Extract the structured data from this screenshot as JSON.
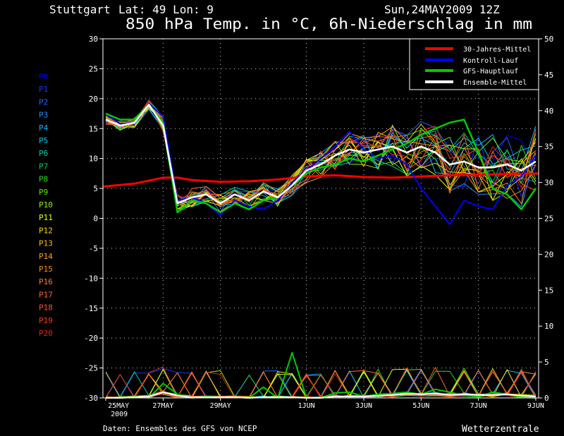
{
  "header": {
    "location": "Stuttgart",
    "coords": "Lat: 49  Lon: 9",
    "run": "Sun,24MAY2009 12Z",
    "title": "850 hPa Temp. in °C, 6h-Niederschlag in mm"
  },
  "footer": {
    "source": "Daten: Ensembles des GFS von NCEP",
    "brand": "Wetterzentrale"
  },
  "colors": {
    "background": "#000000",
    "axis": "#ffffff",
    "grid": "#ffffff",
    "clim": "#ff0000",
    "control": "#0000ff",
    "main": "#00cc00",
    "ensmean": "#ffffff"
  },
  "members": [
    {
      "name": "P0",
      "color": "#0000ff"
    },
    {
      "name": "P1",
      "color": "#1a33ff"
    },
    {
      "name": "P2",
      "color": "#1e66ff"
    },
    {
      "name": "P3",
      "color": "#1e90ff"
    },
    {
      "name": "P4",
      "color": "#19b0ff"
    },
    {
      "name": "P5",
      "color": "#00c8e6"
    },
    {
      "name": "P6",
      "color": "#00d2a0"
    },
    {
      "name": "P7",
      "color": "#00d25a"
    },
    {
      "name": "P8",
      "color": "#28dc1e"
    },
    {
      "name": "P9",
      "color": "#64e600"
    },
    {
      "name": "P10",
      "color": "#a0f000"
    },
    {
      "name": "P11",
      "color": "#e6ff00"
    },
    {
      "name": "P12",
      "color": "#ffdc00"
    },
    {
      "name": "P13",
      "color": "#ffbe00"
    },
    {
      "name": "P14",
      "color": "#ffa01e"
    },
    {
      "name": "P15",
      "color": "#ff8c1e"
    },
    {
      "name": "P16",
      "color": "#ff7828"
    },
    {
      "name": "P17",
      "color": "#ff6432"
    },
    {
      "name": "P18",
      "color": "#ff5028"
    },
    {
      "name": "P19",
      "color": "#f03c1e"
    },
    {
      "name": "P20",
      "color": "#dc2814"
    }
  ],
  "chart_data": {
    "type": "line",
    "title": "850 hPa Temp. in °C, 6h-Niederschlag in mm",
    "x_unit": "days since 25MAY 00Z",
    "xlim": [
      -0.1,
      15.1
    ],
    "ylim_left": [
      -30,
      30
    ],
    "ylim_right": [
      0,
      50
    ],
    "left_ticks": [
      30,
      25,
      20,
      15,
      10,
      5,
      0,
      -5,
      -10,
      -15,
      -20,
      -25,
      -30
    ],
    "right_ticks": [
      50,
      45,
      40,
      35,
      30,
      25,
      20,
      15,
      10,
      5,
      0
    ],
    "x_ticks": [
      {
        "x": 0,
        "label": "25MAY",
        "sub": "2009"
      },
      {
        "x": 2,
        "label": "27MAY",
        "sub": ""
      },
      {
        "x": 4,
        "label": "29MAY",
        "sub": ""
      },
      {
        "x": 7,
        "label": "1JUN",
        "sub": ""
      },
      {
        "x": 9,
        "label": "3JUN",
        "sub": ""
      },
      {
        "x": 11,
        "label": "5JUN",
        "sub": ""
      },
      {
        "x": 13,
        "label": "7JUN",
        "sub": ""
      },
      {
        "x": 15,
        "label": "9JUN",
        "sub": ""
      }
    ],
    "grid": true,
    "legend": {
      "position": "top-right",
      "entries": [
        {
          "label": "30-Jahres-Mittel",
          "color": "#ff0000"
        },
        {
          "label": "Kontroll-Lauf",
          "color": "#0000ff"
        },
        {
          "label": "GFS-Hauptlauf",
          "color": "#00cc00"
        },
        {
          "label": "Ensemble-Mittel",
          "color": "#ffffff"
        }
      ]
    },
    "temperature": {
      "climatology": {
        "x": [
          -0.1,
          1,
          2,
          2.5,
          3,
          4,
          5,
          6,
          7,
          8,
          9,
          10,
          11,
          12,
          13,
          14,
          15.1
        ],
        "y": [
          5.3,
          5.8,
          6.8,
          6.8,
          6.4,
          6.1,
          6.2,
          6.5,
          7.0,
          7.2,
          6.9,
          6.8,
          7.0,
          7.2,
          7.3,
          7.4,
          7.5
        ]
      },
      "control": {
        "x": [
          0,
          0.5,
          1,
          1.5,
          2,
          2.5,
          3,
          3.5,
          4,
          4.5,
          5,
          5.5,
          6,
          6.5,
          7,
          7.5,
          8,
          8.5,
          9,
          9.5,
          10,
          10.5,
          11,
          11.5,
          12,
          12.5,
          13,
          13.5,
          14,
          14.5,
          15
        ],
        "y": [
          17.4,
          15.8,
          16.0,
          19.2,
          17.0,
          3.0,
          3.5,
          2.5,
          0.5,
          3.0,
          2.0,
          1.5,
          3.0,
          6.0,
          8.0,
          10.0,
          12.0,
          14.5,
          11.5,
          10.0,
          10.5,
          9.0,
          5.0,
          2.0,
          -1.0,
          3.0,
          2.0,
          1.5,
          5.5,
          7.0,
          10.5
        ]
      },
      "main": {
        "x": [
          0,
          0.5,
          1,
          1.5,
          2,
          2.5,
          3,
          3.5,
          4,
          4.5,
          5,
          5.5,
          6,
          6.5,
          7,
          7.5,
          8,
          8.5,
          9,
          9.5,
          10,
          10.5,
          11,
          11.5,
          12,
          12.5,
          13,
          13.5,
          14,
          14.5,
          15
        ],
        "y": [
          17.5,
          16.5,
          16.5,
          19.0,
          16.0,
          1.0,
          3.0,
          2.5,
          1.0,
          2.5,
          1.5,
          3.0,
          3.5,
          5.5,
          7.5,
          8.5,
          9.0,
          10.0,
          9.5,
          10.5,
          11.5,
          12.5,
          14.0,
          15.0,
          16.0,
          16.5,
          11.0,
          5.0,
          4.0,
          1.5,
          5.0
        ]
      },
      "ensmean": {
        "x": [
          0,
          0.5,
          1,
          1.5,
          2,
          2.5,
          3,
          3.5,
          4,
          4.5,
          5,
          5.5,
          6,
          6.5,
          7,
          7.5,
          8,
          8.5,
          9,
          9.5,
          10,
          10.5,
          11,
          11.5,
          12,
          12.5,
          13,
          13.5,
          14,
          14.5,
          15
        ],
        "y": [
          16.5,
          15.5,
          16.0,
          19.0,
          15.5,
          2.5,
          3.5,
          4.0,
          2.5,
          4.0,
          3.0,
          4.5,
          3.5,
          5.5,
          8.0,
          9.0,
          10.5,
          11.5,
          11.0,
          11.5,
          12.0,
          11.0,
          12.0,
          11.0,
          9.0,
          9.5,
          8.5,
          8.5,
          9.0,
          8.0,
          9.5
        ]
      }
    },
    "precipitation": {
      "x": [
        0,
        0.5,
        1,
        1.5,
        2,
        2.5,
        3,
        3.5,
        4,
        4.5,
        5,
        5.5,
        6,
        6.5,
        7,
        7.5,
        8,
        8.5,
        9,
        9.5,
        10,
        10.5,
        11,
        11.5,
        12,
        12.5,
        13,
        13.5,
        14,
        14.5,
        15
      ],
      "main": [
        0,
        0,
        0.2,
        0,
        2.0,
        0.5,
        0,
        0.2,
        0.1,
        0.1,
        0,
        1.5,
        0,
        6.3,
        0,
        0,
        0.7,
        0.8,
        0.2,
        0.5,
        0.6,
        0.8,
        0.5,
        1.2,
        0.8,
        0.3,
        0.2,
        0.8,
        0.5,
        0.1,
        0
      ],
      "ensmean": [
        0,
        0,
        0.1,
        0.2,
        0.8,
        0.3,
        0.1,
        0.1,
        0.1,
        0.1,
        0,
        0.1,
        0.1,
        0.1,
        0,
        0,
        0.2,
        0.2,
        0.2,
        0.3,
        0.4,
        0.6,
        0.5,
        0.6,
        0.4,
        0.5,
        0.4,
        0.4,
        0.5,
        0.3,
        0.2
      ]
    }
  }
}
